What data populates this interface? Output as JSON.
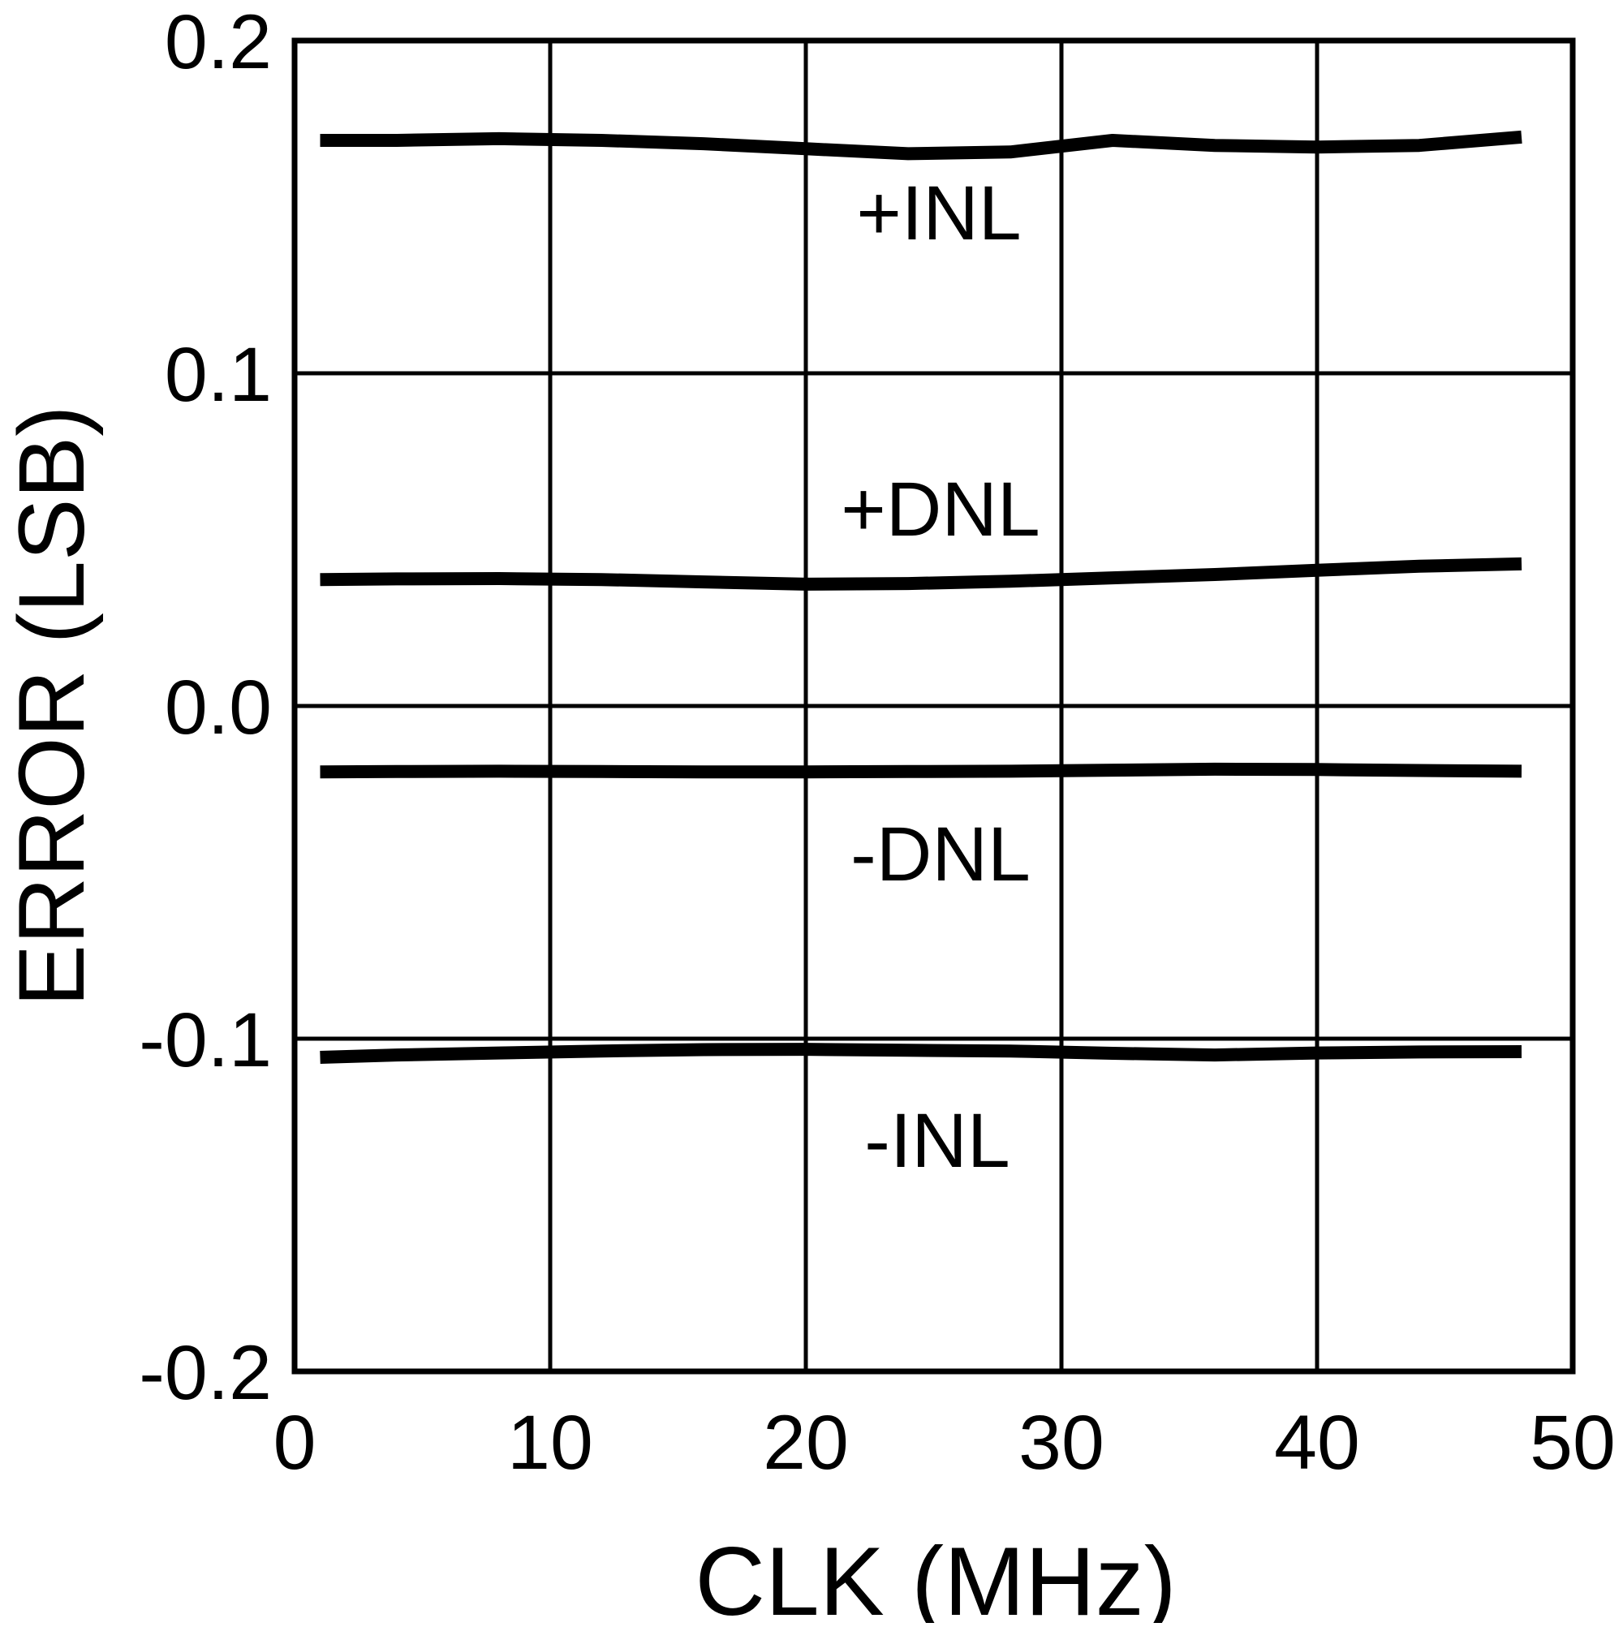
{
  "chart_data": {
    "type": "line",
    "title": "",
    "xlabel": "CLK (MHz)",
    "ylabel": "ERROR (LSB)",
    "xlim": [
      0,
      50
    ],
    "ylim": [
      -0.2,
      0.2
    ],
    "grid": true,
    "legend_position": "inline-annotations",
    "background_color": "#ffffff",
    "line_color": "#000000",
    "xticks": [
      "0",
      "10",
      "20",
      "30",
      "40",
      "50"
    ],
    "yticks": [
      "0.2",
      "0.1",
      "0.0",
      "-0.1",
      "-0.2"
    ],
    "xtick_values": [
      0,
      10,
      20,
      30,
      40,
      50
    ],
    "ytick_values": [
      0.2,
      0.1,
      0.0,
      -0.1,
      -0.2
    ],
    "x": [
      1,
      4,
      8,
      12,
      16,
      20,
      24,
      28,
      32,
      36,
      40,
      44,
      48
    ],
    "series": [
      {
        "name": "+INL",
        "label": "+INL",
        "values": [
          0.17,
          0.17,
          0.1705,
          0.17,
          0.169,
          0.1675,
          0.166,
          0.1665,
          0.17,
          0.1685,
          0.168,
          0.1685,
          0.171
        ]
      },
      {
        "name": "+DNL",
        "label": "+DNL",
        "values": [
          0.038,
          0.0382,
          0.0383,
          0.038,
          0.0373,
          0.0366,
          0.0368,
          0.0375,
          0.0385,
          0.0395,
          0.0408,
          0.042,
          0.0427
        ]
      },
      {
        "name": "-DNL",
        "label": "-DNL",
        "values": [
          -0.0198,
          -0.0197,
          -0.0196,
          -0.0197,
          -0.0198,
          -0.0198,
          -0.0197,
          -0.0196,
          -0.0193,
          -0.019,
          -0.0191,
          -0.0194,
          -0.0196
        ]
      },
      {
        "name": "-INL",
        "label": "-INL",
        "values": [
          -0.1056,
          -0.1049,
          -0.1043,
          -0.1037,
          -0.1033,
          -0.1032,
          -0.1035,
          -0.1037,
          -0.1044,
          -0.1049,
          -0.1043,
          -0.104,
          -0.1039
        ]
      }
    ]
  }
}
